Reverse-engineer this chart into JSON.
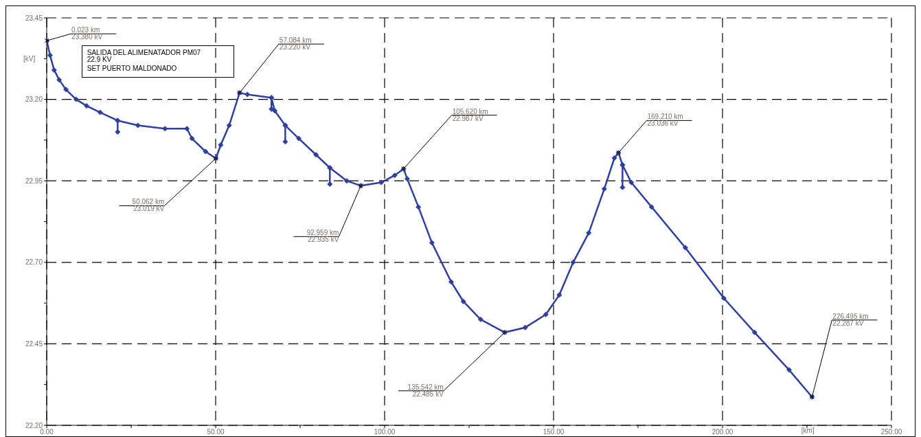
{
  "chart_data": {
    "type": "line",
    "xlabel": "[km]",
    "ylabel": "[kV]",
    "xlim": [
      0,
      250
    ],
    "xticks": [
      {
        "value": 0,
        "label": "0.00"
      },
      {
        "value": 25,
        "label": null
      },
      {
        "value": 50,
        "label": "50.00"
      },
      {
        "value": 75,
        "label": null
      },
      {
        "value": 100,
        "label": "100.00"
      },
      {
        "value": 125,
        "label": null
      },
      {
        "value": 150,
        "label": "150.00"
      },
      {
        "value": 175,
        "label": null
      },
      {
        "value": 200,
        "label": "200.00"
      },
      {
        "value": 225,
        "label": null
      },
      {
        "value": 250,
        "label": "250.00"
      }
    ],
    "ylim": [
      22.2,
      23.45
    ],
    "yticks": [
      {
        "value": 22.2,
        "label": "22.20"
      },
      {
        "value": 22.325,
        "label": null
      },
      {
        "value": 22.45,
        "label": "22.45"
      },
      {
        "value": 22.575,
        "label": null
      },
      {
        "value": 22.7,
        "label": "22.70"
      },
      {
        "value": 22.825,
        "label": null
      },
      {
        "value": 22.95,
        "label": "22.95"
      },
      {
        "value": 23.075,
        "label": null
      },
      {
        "value": 23.2,
        "label": "23.20"
      },
      {
        "value": 23.325,
        "label": null
      },
      {
        "value": 23.45,
        "label": "23.45"
      }
    ],
    "grid": true,
    "marker": "diamond",
    "series": [
      {
        "color": "#2f3f9e",
        "x": [
          0.023,
          1,
          2.2,
          3.7,
          5.7,
          8.7,
          11.8,
          15.8,
          21,
          21,
          21,
          27,
          35,
          41.5,
          43,
          47,
          50.062,
          51.5,
          54,
          57.084,
          59.4,
          66.5,
          66.5,
          66.5,
          67.5,
          70.6,
          70.6,
          70.6,
          74.6,
          79.7,
          83.8,
          83.8,
          83.8,
          88.8,
          92.959,
          99,
          103,
          105.62,
          106.7,
          110,
          114,
          119.7,
          123.3,
          128.4,
          135.542,
          141.6,
          147.7,
          151.7,
          155.8,
          160.4,
          165,
          168,
          169.21,
          170.4,
          170.4,
          170.4,
          173,
          179,
          189,
          200.4,
          209.5,
          219.7,
          226.495
        ],
        "values": [
          23.38,
          23.335,
          23.29,
          23.26,
          23.23,
          23.2,
          23.18,
          23.16,
          23.135,
          23.1,
          23.135,
          23.12,
          23.11,
          23.11,
          23.08,
          23.04,
          23.019,
          23.06,
          23.12,
          23.22,
          23.215,
          23.205,
          23.17,
          23.205,
          23.165,
          23.12,
          23.07,
          23.12,
          23.08,
          23.03,
          22.99,
          22.94,
          22.99,
          22.95,
          22.935,
          22.945,
          22.967,
          22.987,
          22.956,
          22.87,
          22.76,
          22.64,
          22.58,
          22.525,
          22.485,
          22.5,
          22.54,
          22.6,
          22.7,
          22.79,
          22.925,
          23.02,
          23.036,
          22.999,
          22.93,
          22.999,
          22.945,
          22.87,
          22.745,
          22.59,
          22.485,
          22.37,
          22.287
        ]
      }
    ],
    "annotations": [
      "SALIDA DEL ALIMENATADOR PM07",
      "22.9 KV",
      "SET PUERTO MALDONADO",
      {
        "text": "0.023 km\n23.380 kV",
        "x": 0.023,
        "y": 23.38
      },
      {
        "text": "57.084 km\n23.220 kV",
        "x": 57.084,
        "y": 23.22
      },
      {
        "text": "50.062 km\n23.019 kV",
        "x": 50.062,
        "y": 23.019
      },
      {
        "text": "92.959 km\n22.935 kV",
        "x": 92.959,
        "y": 22.935
      },
      {
        "text": "105.620 km\n22.987 kV",
        "x": 105.62,
        "y": 22.987
      },
      {
        "text": "135.542 km\n22.485 kV",
        "x": 135.542,
        "y": 22.485
      },
      {
        "text": "169.210 km\n23.036 kV",
        "x": 169.21,
        "y": 23.036
      },
      {
        "text": "226.495 km\n22.287 kV",
        "x": 226.495,
        "y": 22.287
      }
    ]
  }
}
